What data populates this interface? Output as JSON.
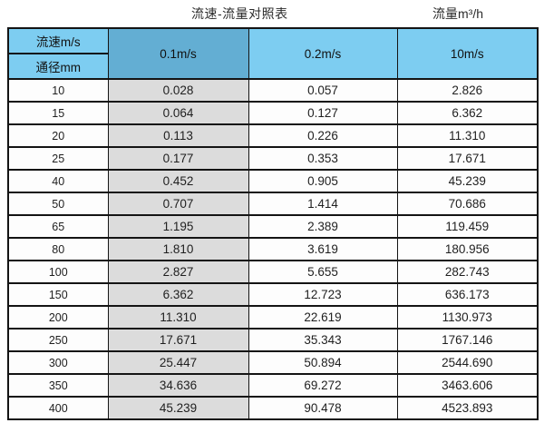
{
  "titles": {
    "main": "流速-流量对照表",
    "right": "流量m³/h"
  },
  "colors": {
    "header_light_blue": "#7dcdf1",
    "header_dark_blue": "#63aed3",
    "gray_column": "#dcdcdc",
    "border": "#141414"
  },
  "table": {
    "header": {
      "top_left": "流速m/s",
      "bottom_left": "通径mm",
      "columns": [
        "0.1m/s",
        "0.2m/s",
        "10m/s"
      ]
    },
    "rows": [
      [
        "10",
        "0.028",
        "0.057",
        "2.826"
      ],
      [
        "15",
        "0.064",
        "0.127",
        "6.362"
      ],
      [
        "20",
        "0.113",
        "0.226",
        "11.310"
      ],
      [
        "25",
        "0.177",
        "0.353",
        "17.671"
      ],
      [
        "40",
        "0.452",
        "0.905",
        "45.239"
      ],
      [
        "50",
        "0.707",
        "1.414",
        "70.686"
      ],
      [
        "65",
        "1.195",
        "2.389",
        "119.459"
      ],
      [
        "80",
        "1.810",
        "3.619",
        "180.956"
      ],
      [
        "100",
        "2.827",
        "5.655",
        "282.743"
      ],
      [
        "150",
        "6.362",
        "12.723",
        "636.173"
      ],
      [
        "200",
        "11.310",
        "22.619",
        "1130.973"
      ],
      [
        "250",
        "17.671",
        "35.343",
        "1767.146"
      ],
      [
        "300",
        "25.447",
        "50.894",
        "2544.690"
      ],
      [
        "350",
        "34.636",
        "69.272",
        "3463.606"
      ],
      [
        "400",
        "45.239",
        "90.478",
        "4523.893"
      ]
    ]
  }
}
